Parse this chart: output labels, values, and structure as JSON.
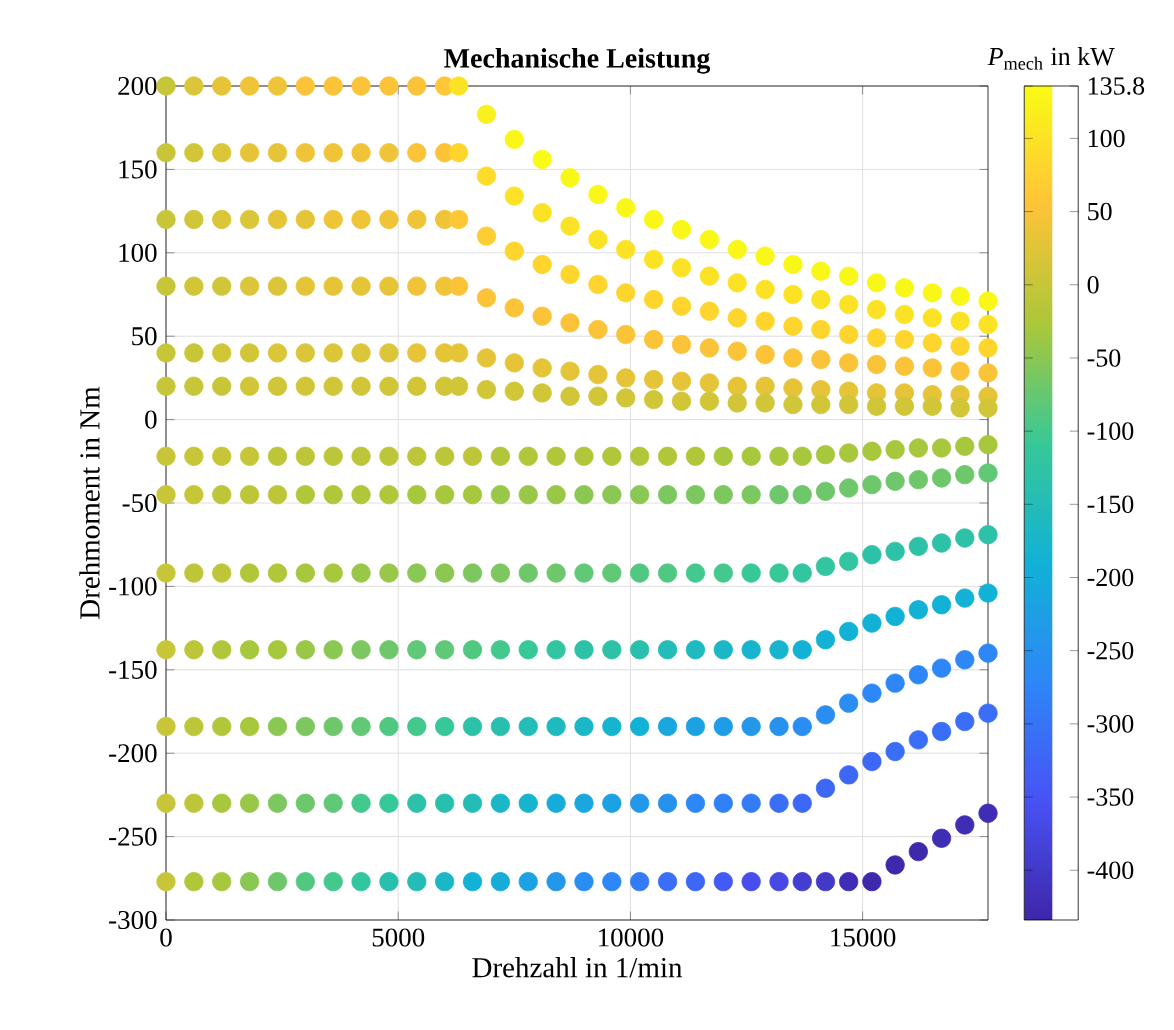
{
  "chart_data": {
    "type": "scatter",
    "title": "Mechanische Leistung",
    "xlabel": "Drehzahl in 1/min",
    "ylabel": "Drehmoment in Nm",
    "clabel": "*P*$_{mech}$ in kW",
    "xlim": [
      0,
      17700
    ],
    "ylim": [
      -300,
      200
    ],
    "xticks": [
      0,
      5000,
      10000,
      15000
    ],
    "yticks": [
      -300,
      -250,
      -200,
      -150,
      -100,
      -50,
      0,
      50,
      100,
      150,
      200
    ],
    "clim": [
      -434,
      135.8
    ],
    "cticks": [
      {
        "value": 135.8,
        "label": "135.8"
      },
      100,
      50,
      0,
      -50,
      -100,
      -150,
      -200,
      -250,
      -300,
      -350,
      -400
    ],
    "grid": true,
    "marker": "circle",
    "series": [
      {
        "x": [
          0,
          600,
          1200,
          1800,
          2400,
          3000,
          3600,
          4200,
          4800,
          5400,
          6000,
          6300,
          6900,
          7500,
          8100,
          8700,
          9300,
          9900,
          10500,
          11100,
          11700,
          12300,
          12900,
          13500,
          14100,
          14700,
          15300,
          15900,
          16500,
          17100,
          17700
        ],
        "values": [
          200,
          200,
          200,
          200,
          200,
          200,
          200,
          200,
          200,
          200,
          200,
          200,
          183,
          168,
          156,
          145,
          135,
          127,
          120,
          114,
          108,
          102,
          98,
          93,
          89,
          86,
          82,
          79,
          76,
          74,
          71
        ],
        "cvalues": [
          0,
          20,
          30,
          40,
          40,
          50,
          50,
          50,
          50,
          50,
          60,
          100,
          120,
          130,
          135.8,
          130,
          130,
          130,
          130,
          130,
          130,
          130,
          130,
          130,
          130,
          130,
          130,
          130,
          130,
          130,
          130
        ],
        "colors": [
          "#c7c639",
          "#dbc538",
          "#e5c438",
          "#f0c438",
          "#f0c438",
          "#fac338",
          "#fac338",
          "#fac338",
          "#fac338",
          "#fac338",
          "#fec736",
          "#fbe224",
          "#faf01b",
          "#f9f717",
          "#f9fb15",
          "#f9f717",
          "#f9f717",
          "#f9f717",
          "#f9f717",
          "#f9f717",
          "#f9f717",
          "#f9f717",
          "#f9f717",
          "#f9f717",
          "#f9f717",
          "#f9f717",
          "#f9f717",
          "#f9f717",
          "#f9f717",
          "#f9f717",
          "#f9f717"
        ]
      },
      {
        "x": [
          0,
          600,
          1200,
          1800,
          2400,
          3000,
          3600,
          4200,
          4800,
          5400,
          6000,
          6300,
          6900,
          7500,
          8100,
          8700,
          9300,
          9900,
          10500,
          11100,
          11700,
          12300,
          12900,
          13500,
          14100,
          14700,
          15300,
          15900,
          16500,
          17100,
          17700
        ],
        "values": [
          160,
          160,
          160,
          160,
          160,
          160,
          160,
          160,
          160,
          160,
          160,
          160,
          146,
          134,
          124,
          116,
          108,
          102,
          96,
          91,
          86,
          82,
          78,
          75,
          72,
          69,
          66,
          63,
          61,
          59,
          57
        ],
        "cvalues": [
          0,
          10,
          20,
          30,
          30,
          40,
          40,
          40,
          40,
          50,
          50,
          80,
          90,
          100,
          100,
          100,
          100,
          100,
          100,
          100,
          100,
          100,
          100,
          100,
          100,
          100,
          100,
          100,
          100,
          100,
          100
        ],
        "colors": [
          "#c7c639",
          "#d1c538",
          "#dbc538",
          "#e5c438",
          "#e5c438",
          "#f0c438",
          "#f0c438",
          "#f0c438",
          "#f0c438",
          "#fac338",
          "#fac338",
          "#fdd52d",
          "#fcdc29",
          "#fbe224",
          "#fbe224",
          "#fbe224",
          "#fbe224",
          "#fbe224",
          "#fbe224",
          "#fbe224",
          "#fbe224",
          "#fbe224",
          "#fbe224",
          "#fbe224",
          "#fbe224",
          "#fbe224",
          "#fbe224",
          "#fbe224",
          "#fbe224",
          "#fbe224",
          "#fbe224"
        ]
      },
      {
        "x": [
          0,
          600,
          1200,
          1800,
          2400,
          3000,
          3600,
          4200,
          4800,
          5400,
          6000,
          6300,
          6900,
          7500,
          8100,
          8700,
          9300,
          9900,
          10500,
          11100,
          11700,
          12300,
          12900,
          13500,
          14100,
          14700,
          15300,
          15900,
          16500,
          17100,
          17700
        ],
        "values": [
          120,
          120,
          120,
          120,
          120,
          120,
          120,
          120,
          120,
          120,
          120,
          120,
          110,
          101,
          93,
          87,
          81,
          76,
          72,
          68,
          65,
          61,
          59,
          56,
          54,
          51,
          49,
          48,
          46,
          44,
          43
        ],
        "cvalues": [
          0,
          10,
          20,
          20,
          30,
          30,
          40,
          40,
          40,
          40,
          40,
          60,
          70,
          80,
          80,
          80,
          80,
          80,
          80,
          80,
          80,
          80,
          80,
          80,
          80,
          80,
          80,
          80,
          80,
          80,
          80
        ],
        "colors": [
          "#c7c639",
          "#d1c538",
          "#dbc538",
          "#dbc538",
          "#e5c438",
          "#e5c438",
          "#f0c438",
          "#f0c438",
          "#f0c438",
          "#f0c438",
          "#f0c438",
          "#fec736",
          "#fdce31",
          "#fdd52d",
          "#fdd52d",
          "#fdd52d",
          "#fdd52d",
          "#fdd52d",
          "#fdd52d",
          "#fdd52d",
          "#fdd52d",
          "#fdd52d",
          "#fdd52d",
          "#fdd52d",
          "#fdd52d",
          "#fdd52d",
          "#fdd52d",
          "#fdd52d",
          "#fdd52d",
          "#fdd52d",
          "#fdd52d"
        ]
      },
      {
        "x": [
          0,
          600,
          1200,
          1800,
          2400,
          3000,
          3600,
          4200,
          4800,
          5400,
          6000,
          6300,
          6900,
          7500,
          8100,
          8700,
          9300,
          9900,
          10500,
          11100,
          11700,
          12300,
          12900,
          13500,
          14100,
          14700,
          15300,
          15900,
          16500,
          17100,
          17700
        ],
        "values": [
          80,
          80,
          80,
          80,
          80,
          80,
          80,
          80,
          80,
          80,
          80,
          80,
          73,
          67,
          62,
          58,
          54,
          51,
          48,
          45,
          43,
          41,
          39,
          37,
          36,
          34,
          33,
          32,
          31,
          29,
          28
        ],
        "cvalues": [
          0,
          10,
          10,
          20,
          20,
          30,
          30,
          30,
          30,
          40,
          40,
          50,
          50,
          50,
          50,
          50,
          50,
          50,
          50,
          50,
          50,
          50,
          50,
          50,
          50,
          50,
          50,
          50,
          50,
          50,
          50
        ],
        "colors": [
          "#c7c639",
          "#d1c538",
          "#d1c538",
          "#dbc538",
          "#dbc538",
          "#e5c438",
          "#e5c438",
          "#e5c438",
          "#e5c438",
          "#f0c438",
          "#f0c438",
          "#fac338",
          "#fac338",
          "#fac338",
          "#fac338",
          "#fac338",
          "#fac338",
          "#fac338",
          "#fac338",
          "#fac338",
          "#fac338",
          "#fac338",
          "#fac338",
          "#fac338",
          "#fac338",
          "#fac338",
          "#fac338",
          "#fac338",
          "#fac338",
          "#fac338",
          "#fac338"
        ]
      },
      {
        "x": [
          0,
          600,
          1200,
          1800,
          2400,
          3000,
          3600,
          4200,
          4800,
          5400,
          6000,
          6300,
          6900,
          7500,
          8100,
          8700,
          9300,
          9900,
          10500,
          11100,
          11700,
          12300,
          12900,
          13500,
          14100,
          14700,
          15300,
          15900,
          16500,
          17100,
          17700
        ],
        "values": [
          40,
          40,
          40,
          40,
          40,
          40,
          40,
          40,
          40,
          40,
          40,
          40,
          37,
          34,
          31,
          29,
          27,
          25,
          24,
          23,
          22,
          20,
          20,
          19,
          18,
          17,
          16,
          16,
          15,
          15,
          14
        ],
        "cvalues": [
          0,
          0,
          10,
          10,
          20,
          20,
          20,
          20,
          20,
          30,
          30,
          30,
          30,
          30,
          30,
          30,
          30,
          30,
          30,
          30,
          30,
          30,
          30,
          30,
          30,
          30,
          30,
          30,
          30,
          30,
          30
        ],
        "colors": [
          "#c7c639",
          "#c7c639",
          "#d1c538",
          "#d1c538",
          "#dbc538",
          "#dbc538",
          "#dbc538",
          "#dbc538",
          "#dbc538",
          "#e5c438",
          "#e5c438",
          "#e5c438",
          "#e5c438",
          "#e5c438",
          "#e5c438",
          "#e5c438",
          "#e5c438",
          "#e5c438",
          "#e5c438",
          "#e5c438",
          "#e5c438",
          "#e5c438",
          "#e5c438",
          "#e5c438",
          "#e5c438",
          "#e5c438",
          "#e5c438",
          "#e5c438",
          "#e5c438",
          "#e5c438",
          "#e5c438"
        ]
      },
      {
        "x": [
          0,
          600,
          1200,
          1800,
          2400,
          3000,
          3600,
          4200,
          4800,
          5400,
          6000,
          6300,
          6900,
          7500,
          8100,
          8700,
          9300,
          9900,
          10500,
          11100,
          11700,
          12300,
          12900,
          13500,
          14100,
          14700,
          15300,
          15900,
          16500,
          17100,
          17700
        ],
        "values": [
          20,
          20,
          20,
          20,
          20,
          20,
          20,
          20,
          20,
          20,
          20,
          20,
          18,
          17,
          16,
          14,
          14,
          13,
          12,
          11,
          11,
          10,
          10,
          9,
          9,
          9,
          8,
          8,
          8,
          7,
          7
        ],
        "cvalues": [
          0,
          0,
          0,
          10,
          10,
          10,
          10,
          10,
          10,
          10,
          10,
          10,
          10,
          10,
          10,
          10,
          10,
          10,
          10,
          10,
          10,
          10,
          10,
          10,
          10,
          10,
          10,
          10,
          10,
          10,
          10
        ],
        "colors": [
          "#c7c639",
          "#c7c639",
          "#c7c639",
          "#d1c538",
          "#d1c538",
          "#d1c538",
          "#d1c538",
          "#d1c538",
          "#d1c538",
          "#d1c538",
          "#d1c538",
          "#d1c538",
          "#d1c538",
          "#d1c538",
          "#d1c538",
          "#d1c538",
          "#d1c538",
          "#d1c538",
          "#d1c538",
          "#d1c538",
          "#d1c538",
          "#d1c538",
          "#d1c538",
          "#d1c538",
          "#d1c538",
          "#d1c538",
          "#d1c538",
          "#d1c538",
          "#d1c538",
          "#d1c538",
          "#d1c538"
        ]
      },
      {
        "x": [
          0,
          600,
          1200,
          1800,
          2400,
          3000,
          3600,
          4200,
          4800,
          5400,
          6000,
          6600,
          7200,
          7800,
          8400,
          9000,
          9600,
          10200,
          10800,
          11400,
          12000,
          12600,
          13200,
          13700,
          14200,
          14700,
          15200,
          15700,
          16200,
          16700,
          17200,
          17700
        ],
        "values": [
          -22,
          -22,
          -22,
          -22,
          -22,
          -22,
          -22,
          -22,
          -22,
          -22,
          -22,
          -22,
          -22,
          -22,
          -22,
          -22,
          -22,
          -22,
          -22,
          -22,
          -22,
          -22,
          -22,
          -22,
          -21,
          -20,
          -19,
          -18,
          -17,
          -17,
          -16,
          -15
        ],
        "cvalues": [
          0,
          0,
          0,
          0,
          -10,
          -10,
          -10,
          -10,
          -10,
          -10,
          -10,
          -10,
          -20,
          -20,
          -20,
          -20,
          -20,
          -20,
          -20,
          -20,
          -30,
          -30,
          -30,
          -30,
          -30,
          -30,
          -30,
          -30,
          -30,
          -30,
          -30,
          -30
        ],
        "colors": [
          "#c7c639",
          "#c7c639",
          "#c7c639",
          "#c7c639",
          "#bdc639",
          "#bdc639",
          "#bdc639",
          "#bdc639",
          "#bdc639",
          "#bdc639",
          "#bdc639",
          "#bdc639",
          "#b2c639",
          "#b2c639",
          "#b2c639",
          "#b2c639",
          "#b2c639",
          "#b2c639",
          "#b2c639",
          "#b2c639",
          "#a7c73c",
          "#a7c73c",
          "#a7c73c",
          "#a7c73c",
          "#a7c73c",
          "#a7c73c",
          "#a7c73c",
          "#a7c73c",
          "#a7c73c",
          "#a7c73c",
          "#a7c73c",
          "#a7c73c"
        ]
      },
      {
        "x": [
          0,
          600,
          1200,
          1800,
          2400,
          3000,
          3600,
          4200,
          4800,
          5400,
          6000,
          6600,
          7200,
          7800,
          8400,
          9000,
          9600,
          10200,
          10800,
          11400,
          12000,
          12600,
          13200,
          13700,
          14200,
          14700,
          15200,
          15700,
          16200,
          16700,
          17200,
          17700
        ],
        "values": [
          -45,
          -45,
          -45,
          -45,
          -45,
          -45,
          -45,
          -45,
          -45,
          -45,
          -45,
          -45,
          -45,
          -45,
          -45,
          -45,
          -45,
          -45,
          -45,
          -45,
          -45,
          -45,
          -45,
          -45,
          -43,
          -41,
          -39,
          -37,
          -36,
          -35,
          -33,
          -32
        ],
        "cvalues": [
          0,
          0,
          -10,
          -10,
          -10,
          -20,
          -20,
          -20,
          -20,
          -30,
          -30,
          -30,
          -40,
          -40,
          -40,
          -50,
          -50,
          -50,
          -60,
          -60,
          -60,
          -60,
          -70,
          -70,
          -70,
          -70,
          -70,
          -70,
          -70,
          -70,
          -70,
          -80
        ],
        "colors": [
          "#c7c639",
          "#c7c639",
          "#bdc639",
          "#bdc639",
          "#bdc639",
          "#b2c639",
          "#b2c639",
          "#b2c639",
          "#b2c639",
          "#a7c73c",
          "#a7c73c",
          "#a7c73c",
          "#99c748",
          "#99c748",
          "#99c748",
          "#8bc753",
          "#8bc753",
          "#8bc753",
          "#7cc75f",
          "#7cc75f",
          "#7cc75f",
          "#7cc75f",
          "#6ec76b",
          "#6ec76b",
          "#6ec76b",
          "#6ec76b",
          "#6ec76b",
          "#6ec76b",
          "#6ec76b",
          "#6ec76b",
          "#6ec76b",
          "#60c876"
        ]
      },
      {
        "x": [
          0,
          600,
          1200,
          1800,
          2400,
          3000,
          3600,
          4200,
          4800,
          5400,
          6000,
          6600,
          7200,
          7800,
          8400,
          9000,
          9600,
          10200,
          10800,
          11400,
          12000,
          12600,
          13200,
          13700,
          14200,
          14700,
          15200,
          15700,
          16200,
          16700,
          17200,
          17700
        ],
        "values": [
          -92,
          -92,
          -92,
          -92,
          -92,
          -92,
          -92,
          -92,
          -92,
          -92,
          -92,
          -92,
          -92,
          -92,
          -92,
          -92,
          -92,
          -92,
          -92,
          -92,
          -92,
          -92,
          -92,
          -92,
          -88,
          -85,
          -81,
          -79,
          -76,
          -74,
          -71,
          -69
        ],
        "cvalues": [
          0,
          -10,
          -10,
          -20,
          -20,
          -30,
          -30,
          -40,
          -40,
          -50,
          -50,
          -60,
          -60,
          -70,
          -70,
          -80,
          -80,
          -90,
          -90,
          -100,
          -100,
          -110,
          -110,
          -120,
          -120,
          -120,
          -130,
          -130,
          -130,
          -130,
          -130,
          -130
        ],
        "colors": [
          "#c7c639",
          "#bdc639",
          "#bdc639",
          "#b2c639",
          "#b2c639",
          "#a7c73c",
          "#a7c73c",
          "#99c748",
          "#99c748",
          "#8bc753",
          "#8bc753",
          "#7cc75f",
          "#7cc75f",
          "#6ec76b",
          "#6ec76b",
          "#60c876",
          "#60c876",
          "#51c882",
          "#51c882",
          "#43c88d",
          "#43c88d",
          "#36c898",
          "#36c898",
          "#32c5a0",
          "#32c5a0",
          "#32c5a0",
          "#2dc2a8",
          "#2dc2a8",
          "#2dc2a8",
          "#2dc2a8",
          "#2dc2a8",
          "#2dc2a8"
        ]
      },
      {
        "x": [
          0,
          600,
          1200,
          1800,
          2400,
          3000,
          3600,
          4200,
          4800,
          5400,
          6000,
          6600,
          7200,
          7800,
          8400,
          9000,
          9600,
          10200,
          10800,
          11400,
          12000,
          12600,
          13200,
          13700,
          14200,
          14700,
          15200,
          15700,
          16200,
          16700,
          17200,
          17700
        ],
        "values": [
          -138,
          -138,
          -138,
          -138,
          -138,
          -138,
          -138,
          -138,
          -138,
          -138,
          -138,
          -138,
          -138,
          -138,
          -138,
          -138,
          -138,
          -138,
          -138,
          -138,
          -138,
          -138,
          -138,
          -138,
          -132,
          -127,
          -122,
          -118,
          -114,
          -111,
          -107,
          -104
        ],
        "cvalues": [
          0,
          -10,
          -20,
          -30,
          -30,
          -40,
          -50,
          -60,
          -70,
          -80,
          -80,
          -90,
          -100,
          -110,
          -120,
          -130,
          -130,
          -140,
          -150,
          -160,
          -170,
          -180,
          -180,
          -190,
          -190,
          -190,
          -190,
          -190,
          -190,
          -190,
          -190,
          -190
        ],
        "colors": [
          "#c7c639",
          "#bdc639",
          "#b2c639",
          "#a7c73c",
          "#a7c73c",
          "#99c748",
          "#8bc753",
          "#7cc75f",
          "#6ec76b",
          "#60c876",
          "#60c876",
          "#51c882",
          "#43c88d",
          "#36c898",
          "#32c5a0",
          "#2dc2a8",
          "#2dc2a8",
          "#29bfaf",
          "#24bcb7",
          "#1fbabf",
          "#1bb7c7",
          "#16b4ce",
          "#16b4ce",
          "#12b1d6",
          "#12b1d6",
          "#12b1d6",
          "#12b1d6",
          "#12b1d6",
          "#12b1d6",
          "#12b1d6",
          "#12b1d6",
          "#12b1d6"
        ]
      },
      {
        "x": [
          0,
          600,
          1200,
          1800,
          2400,
          3000,
          3600,
          4200,
          4800,
          5400,
          6000,
          6600,
          7200,
          7800,
          8400,
          9000,
          9600,
          10200,
          10800,
          11400,
          12000,
          12600,
          13200,
          13700,
          14200,
          14700,
          15200,
          15700,
          16200,
          16700,
          17200,
          17700
        ],
        "values": [
          -184,
          -184,
          -184,
          -184,
          -184,
          -184,
          -184,
          -184,
          -184,
          -184,
          -184,
          -184,
          -184,
          -184,
          -184,
          -184,
          -184,
          -184,
          -184,
          -184,
          -184,
          -184,
          -184,
          -184,
          -177,
          -170,
          -164,
          -158,
          -153,
          -149,
          -144,
          -140
        ],
        "cvalues": [
          0,
          -10,
          -20,
          -30,
          -50,
          -60,
          -70,
          -80,
          -90,
          -100,
          -110,
          -130,
          -140,
          -150,
          -160,
          -170,
          -180,
          -190,
          -210,
          -220,
          -230,
          -240,
          -250,
          -260,
          -260,
          -260,
          -270,
          -270,
          -270,
          -270,
          -270,
          -270
        ],
        "colors": [
          "#c7c639",
          "#bdc639",
          "#b2c639",
          "#a7c73c",
          "#8bc753",
          "#7cc75f",
          "#6ec76b",
          "#60c876",
          "#51c882",
          "#43c88d",
          "#36c898",
          "#2dc2a8",
          "#29bfaf",
          "#24bcb7",
          "#1fbabf",
          "#1bb7c7",
          "#16b4ce",
          "#12b1d6",
          "#19a7de",
          "#1ca1e2",
          "#1f9ce6",
          "#2397ea",
          "#2692ee",
          "#2a8df2",
          "#2a8df2",
          "#2a8df2",
          "#2d87f6",
          "#2d87f6",
          "#2d87f6",
          "#2d87f6",
          "#2d87f6",
          "#2d87f6"
        ]
      },
      {
        "x": [
          0,
          600,
          1200,
          1800,
          2400,
          3000,
          3600,
          4200,
          4800,
          5400,
          6000,
          6600,
          7200,
          7800,
          8400,
          9000,
          9600,
          10200,
          10800,
          11400,
          12000,
          12600,
          13200,
          13700,
          14200,
          14700,
          15200,
          15700,
          16200,
          16700,
          17200,
          17700
        ],
        "values": [
          -230,
          -230,
          -230,
          -230,
          -230,
          -230,
          -230,
          -230,
          -230,
          -230,
          -230,
          -230,
          -230,
          -230,
          -230,
          -230,
          -230,
          -230,
          -230,
          -230,
          -230,
          -230,
          -230,
          -230,
          -221,
          -213,
          -205,
          -199,
          -192,
          -187,
          -181,
          -176
        ],
        "cvalues": [
          0,
          -10,
          -30,
          -40,
          -60,
          -70,
          -80,
          -100,
          -110,
          -130,
          -140,
          -150,
          -170,
          -180,
          -200,
          -210,
          -220,
          -240,
          -250,
          -270,
          -280,
          -290,
          -310,
          -320,
          -320,
          -320,
          -320,
          -310,
          -310,
          -310,
          -310,
          -310
        ],
        "colors": [
          "#c7c639",
          "#bdc639",
          "#a7c73c",
          "#99c748",
          "#7cc75f",
          "#6ec76b",
          "#60c876",
          "#43c88d",
          "#36c898",
          "#2dc2a8",
          "#29bfaf",
          "#24bcb7",
          "#1bb7c7",
          "#16b4ce",
          "#15acda",
          "#19a7de",
          "#1ca1e2",
          "#2397ea",
          "#2692ee",
          "#2d87f6",
          "#3081f7",
          "#347bf6",
          "#3a6ef6",
          "#3d67f5",
          "#3d67f5",
          "#3d67f5",
          "#3d67f5",
          "#3a6ef6",
          "#3a6ef6",
          "#3a6ef6",
          "#3a6ef6",
          "#3a6ef6"
        ]
      },
      {
        "x": [
          0,
          600,
          1200,
          1800,
          2400,
          3000,
          3600,
          4200,
          4800,
          5400,
          6000,
          6600,
          7200,
          7800,
          8400,
          9000,
          9600,
          10200,
          10800,
          11400,
          12000,
          12600,
          13200,
          13700,
          14200,
          14700,
          15200,
          15700,
          16200,
          16700,
          17200,
          17700
        ],
        "values": [
          -277,
          -277,
          -277,
          -277,
          -277,
          -277,
          -277,
          -277,
          -277,
          -277,
          -277,
          -277,
          -277,
          -277,
          -277,
          -277,
          -277,
          -277,
          -277,
          -277,
          -277,
          -277,
          -277,
          -277,
          -277,
          -277,
          -277,
          -267,
          -259,
          -251,
          -243,
          -236
        ],
        "cvalues": [
          0,
          -20,
          -30,
          -50,
          -70,
          -90,
          -100,
          -120,
          -140,
          -150,
          -170,
          -190,
          -200,
          -220,
          -240,
          -260,
          -270,
          -290,
          -310,
          -320,
          -340,
          -360,
          -370,
          -390,
          -400,
          -420,
          -430,
          -430,
          -430,
          -420,
          -420,
          -420
        ],
        "colors": [
          "#c7c639",
          "#b2c639",
          "#a7c73c",
          "#8bc753",
          "#6ec76b",
          "#51c882",
          "#43c88d",
          "#32c5a0",
          "#29bfaf",
          "#24bcb7",
          "#1bb7c7",
          "#12b1d6",
          "#15acda",
          "#1ca1e2",
          "#2397ea",
          "#2a8df2",
          "#2d87f6",
          "#347bf6",
          "#3a6ef6",
          "#3d67f5",
          "#445af5",
          "#474eed",
          "#4649e4",
          "#433ed1",
          "#4239c8",
          "#3f2eb5",
          "#3e29ac",
          "#3e29ac",
          "#3e29ac",
          "#3f2eb5",
          "#3f2eb5",
          "#3f2eb5"
        ]
      }
    ]
  }
}
